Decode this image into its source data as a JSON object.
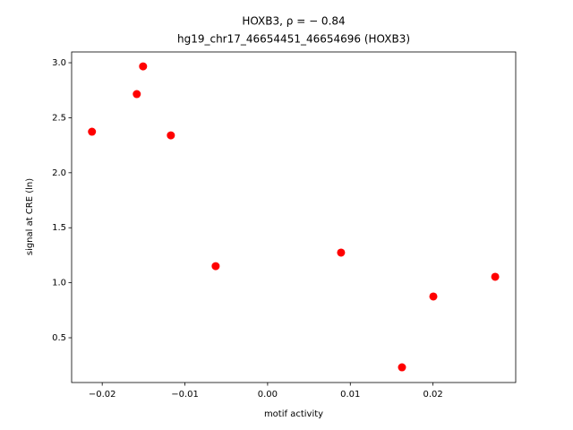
{
  "chart_data": {
    "type": "scatter",
    "title": "HOXB3, ρ = − 0.84",
    "subtitle": "hg19_chr17_46654451_46654696 (HOXB3)",
    "x_label": "motif activity",
    "y_label": "signal at CRE (ln)",
    "series": [
      {
        "color": "#ff0000",
        "x": [
          -0.02124,
          -0.01582,
          -0.01506,
          -0.0117,
          -0.00628,
          0.00888,
          0.01625,
          0.02004,
          0.02752
        ],
        "values": [
          2.373,
          2.715,
          2.967,
          2.34,
          1.151,
          1.274,
          0.231,
          0.875,
          1.054
        ]
      }
    ],
    "xlim": [
      -0.0237,
      0.03
    ],
    "ylim": [
      0.093,
      3.098
    ],
    "xticks": [
      {
        "value": -0.02,
        "label": "−0.02"
      },
      {
        "value": -0.01,
        "label": "−0.01"
      },
      {
        "value": 0,
        "label": "0.00"
      },
      0.01,
      0.02
    ],
    "yticks": [
      0.5,
      {
        "value": 1,
        "label": "1.0"
      },
      1.5,
      {
        "value": 2,
        "label": "2.0"
      },
      2.5,
      {
        "value": 3,
        "label": "3.0"
      }
    ]
  }
}
